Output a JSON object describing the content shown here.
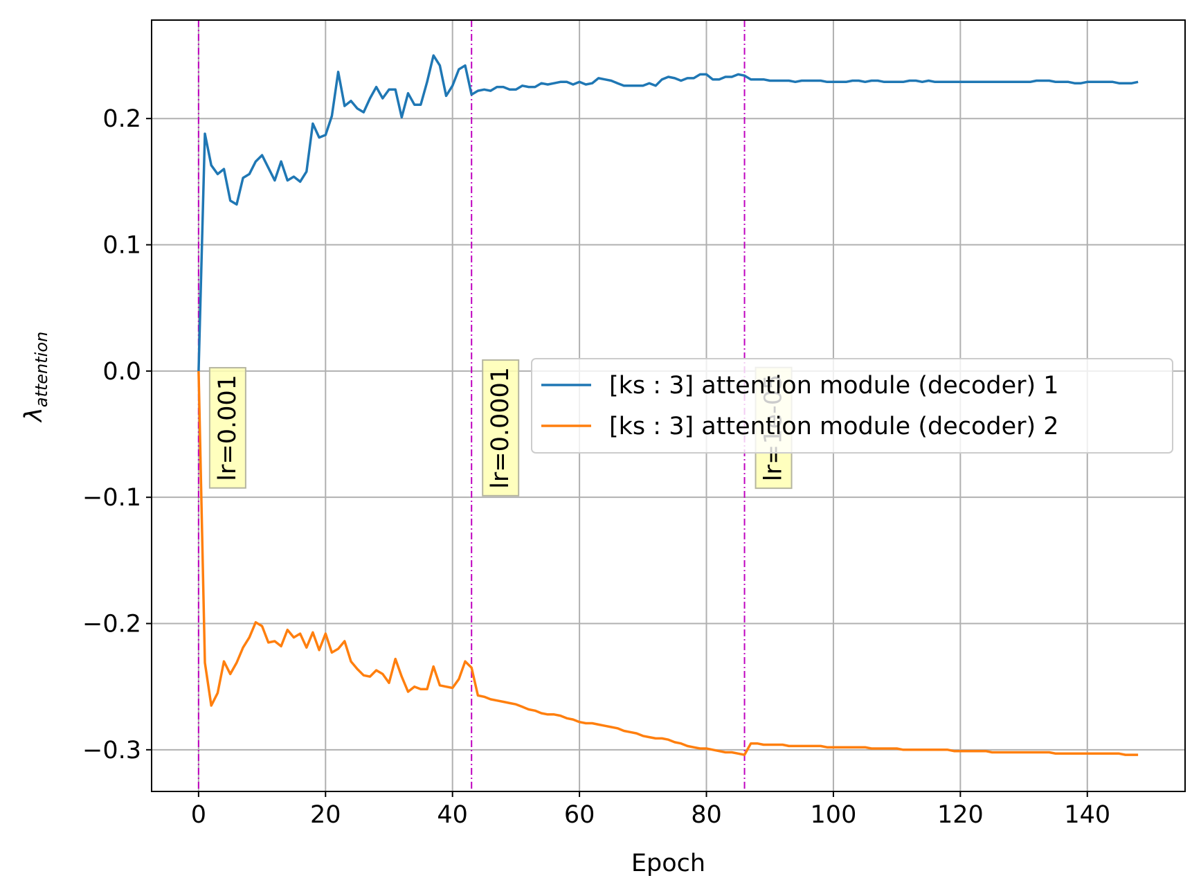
{
  "chart_data": {
    "type": "line",
    "xlabel": "Epoch",
    "ylabel_symbol": "λ",
    "ylabel_subscript": "attention",
    "xlim": [
      -7.4,
      155.4
    ],
    "ylim": [
      -0.333,
      0.278
    ],
    "xticks": [
      0,
      20,
      40,
      60,
      80,
      100,
      120,
      140
    ],
    "xtick_labels": [
      "0",
      "20",
      "40",
      "60",
      "80",
      "100",
      "120",
      "140"
    ],
    "yticks": [
      -0.3,
      -0.2,
      -0.1,
      0.0,
      0.1,
      0.2
    ],
    "ytick_labels": [
      "−0.3",
      "−0.2",
      "−0.1",
      "0.0",
      "0.1",
      "0.2"
    ],
    "grid": true,
    "legend_position": "center-right",
    "series": [
      {
        "name": "[ks : 3] attention module (decoder) 1",
        "color": "#1f77b4",
        "x": [
          0,
          1,
          2,
          3,
          4,
          5,
          6,
          7,
          8,
          9,
          10,
          11,
          12,
          13,
          14,
          15,
          16,
          17,
          18,
          19,
          20,
          21,
          22,
          23,
          24,
          25,
          26,
          27,
          28,
          29,
          30,
          31,
          32,
          33,
          34,
          35,
          36,
          37,
          38,
          39,
          40,
          41,
          42,
          43,
          44,
          45,
          46,
          47,
          48,
          49,
          50,
          51,
          52,
          53,
          54,
          55,
          56,
          57,
          58,
          59,
          60,
          61,
          62,
          63,
          64,
          65,
          66,
          67,
          68,
          69,
          70,
          71,
          72,
          73,
          74,
          75,
          76,
          77,
          78,
          79,
          80,
          81,
          82,
          83,
          84,
          85,
          86,
          87,
          88,
          89,
          90,
          91,
          92,
          93,
          94,
          95,
          96,
          97,
          98,
          99,
          100,
          101,
          102,
          103,
          104,
          105,
          106,
          107,
          108,
          109,
          110,
          111,
          112,
          113,
          114,
          115,
          116,
          117,
          118,
          119,
          120,
          121,
          122,
          123,
          124,
          125,
          126,
          127,
          128,
          129,
          130,
          131,
          132,
          133,
          134,
          135,
          136,
          137,
          138,
          139,
          140,
          141,
          142,
          143,
          144,
          145,
          146,
          147,
          148
        ],
        "y": [
          0.0,
          0.188,
          0.163,
          0.156,
          0.16,
          0.135,
          0.132,
          0.153,
          0.156,
          0.166,
          0.171,
          0.161,
          0.151,
          0.166,
          0.151,
          0.154,
          0.15,
          0.158,
          0.196,
          0.185,
          0.187,
          0.202,
          0.237,
          0.21,
          0.214,
          0.208,
          0.205,
          0.216,
          0.225,
          0.216,
          0.223,
          0.223,
          0.201,
          0.22,
          0.211,
          0.211,
          0.229,
          0.25,
          0.242,
          0.218,
          0.226,
          0.239,
          0.242,
          0.219,
          0.222,
          0.223,
          0.222,
          0.225,
          0.225,
          0.223,
          0.223,
          0.226,
          0.225,
          0.225,
          0.228,
          0.227,
          0.228,
          0.229,
          0.229,
          0.227,
          0.229,
          0.227,
          0.228,
          0.232,
          0.231,
          0.23,
          0.228,
          0.226,
          0.226,
          0.226,
          0.226,
          0.228,
          0.226,
          0.231,
          0.233,
          0.232,
          0.23,
          0.232,
          0.232,
          0.235,
          0.235,
          0.231,
          0.231,
          0.233,
          0.233,
          0.235,
          0.234,
          0.231,
          0.231,
          0.231,
          0.23,
          0.23,
          0.23,
          0.23,
          0.229,
          0.23,
          0.23,
          0.23,
          0.23,
          0.229,
          0.229,
          0.229,
          0.229,
          0.23,
          0.23,
          0.229,
          0.23,
          0.23,
          0.229,
          0.229,
          0.229,
          0.229,
          0.23,
          0.23,
          0.229,
          0.23,
          0.229,
          0.229,
          0.229,
          0.229,
          0.229,
          0.229,
          0.229,
          0.229,
          0.229,
          0.229,
          0.229,
          0.229,
          0.229,
          0.229,
          0.229,
          0.229,
          0.23,
          0.23,
          0.23,
          0.229,
          0.229,
          0.229,
          0.228,
          0.228,
          0.229,
          0.229,
          0.229,
          0.229,
          0.229,
          0.228,
          0.228,
          0.228,
          0.229
        ]
      },
      {
        "name": "[ks : 3] attention module (decoder) 2",
        "color": "#ff7f0e",
        "x": [
          0,
          1,
          2,
          3,
          4,
          5,
          6,
          7,
          8,
          9,
          10,
          11,
          12,
          13,
          14,
          15,
          16,
          17,
          18,
          19,
          20,
          21,
          22,
          23,
          24,
          25,
          26,
          27,
          28,
          29,
          30,
          31,
          32,
          33,
          34,
          35,
          36,
          37,
          38,
          39,
          40,
          41,
          42,
          43,
          44,
          45,
          46,
          47,
          48,
          49,
          50,
          51,
          52,
          53,
          54,
          55,
          56,
          57,
          58,
          59,
          60,
          61,
          62,
          63,
          64,
          65,
          66,
          67,
          68,
          69,
          70,
          71,
          72,
          73,
          74,
          75,
          76,
          77,
          78,
          79,
          80,
          81,
          82,
          83,
          84,
          85,
          86,
          87,
          88,
          89,
          90,
          91,
          92,
          93,
          94,
          95,
          96,
          97,
          98,
          99,
          100,
          101,
          102,
          103,
          104,
          105,
          106,
          107,
          108,
          109,
          110,
          111,
          112,
          113,
          114,
          115,
          116,
          117,
          118,
          119,
          120,
          121,
          122,
          123,
          124,
          125,
          126,
          127,
          128,
          129,
          130,
          131,
          132,
          133,
          134,
          135,
          136,
          137,
          138,
          139,
          140,
          141,
          142,
          143,
          144,
          145,
          146,
          147,
          148
        ],
        "y": [
          0.0,
          -0.231,
          -0.265,
          -0.255,
          -0.23,
          -0.24,
          -0.231,
          -0.219,
          -0.211,
          -0.199,
          -0.202,
          -0.215,
          -0.214,
          -0.218,
          -0.205,
          -0.211,
          -0.208,
          -0.219,
          -0.207,
          -0.221,
          -0.208,
          -0.223,
          -0.22,
          -0.214,
          -0.23,
          -0.236,
          -0.241,
          -0.242,
          -0.237,
          -0.24,
          -0.247,
          -0.228,
          -0.242,
          -0.254,
          -0.25,
          -0.252,
          -0.252,
          -0.234,
          -0.249,
          -0.25,
          -0.251,
          -0.244,
          -0.23,
          -0.235,
          -0.257,
          -0.258,
          -0.26,
          -0.261,
          -0.262,
          -0.263,
          -0.264,
          -0.266,
          -0.268,
          -0.269,
          -0.271,
          -0.272,
          -0.272,
          -0.273,
          -0.275,
          -0.276,
          -0.278,
          -0.279,
          -0.279,
          -0.28,
          -0.281,
          -0.282,
          -0.283,
          -0.285,
          -0.286,
          -0.287,
          -0.289,
          -0.29,
          -0.291,
          -0.291,
          -0.292,
          -0.294,
          -0.295,
          -0.297,
          -0.298,
          -0.299,
          -0.299,
          -0.3,
          -0.301,
          -0.302,
          -0.302,
          -0.303,
          -0.304,
          -0.295,
          -0.295,
          -0.296,
          -0.296,
          -0.296,
          -0.296,
          -0.297,
          -0.297,
          -0.297,
          -0.297,
          -0.297,
          -0.297,
          -0.298,
          -0.298,
          -0.298,
          -0.298,
          -0.298,
          -0.298,
          -0.298,
          -0.299,
          -0.299,
          -0.299,
          -0.299,
          -0.299,
          -0.3,
          -0.3,
          -0.3,
          -0.3,
          -0.3,
          -0.3,
          -0.3,
          -0.3,
          -0.301,
          -0.301,
          -0.301,
          -0.301,
          -0.301,
          -0.301,
          -0.302,
          -0.302,
          -0.302,
          -0.302,
          -0.302,
          -0.302,
          -0.302,
          -0.302,
          -0.302,
          -0.302,
          -0.303,
          -0.303,
          -0.303,
          -0.303,
          -0.303,
          -0.303,
          -0.303,
          -0.303,
          -0.303,
          -0.303,
          -0.303,
          -0.304,
          -0.304,
          -0.304
        ]
      }
    ],
    "vlines": [
      {
        "x": 0,
        "label": "lr=0.001",
        "color": "#bf00bf"
      },
      {
        "x": 43,
        "label": "lr=0.0001",
        "color": "#bf00bf"
      },
      {
        "x": 86,
        "label": "lr=1e-05",
        "color": "#bf00bf"
      }
    ],
    "annotation_box_color": "#ffffb3"
  }
}
